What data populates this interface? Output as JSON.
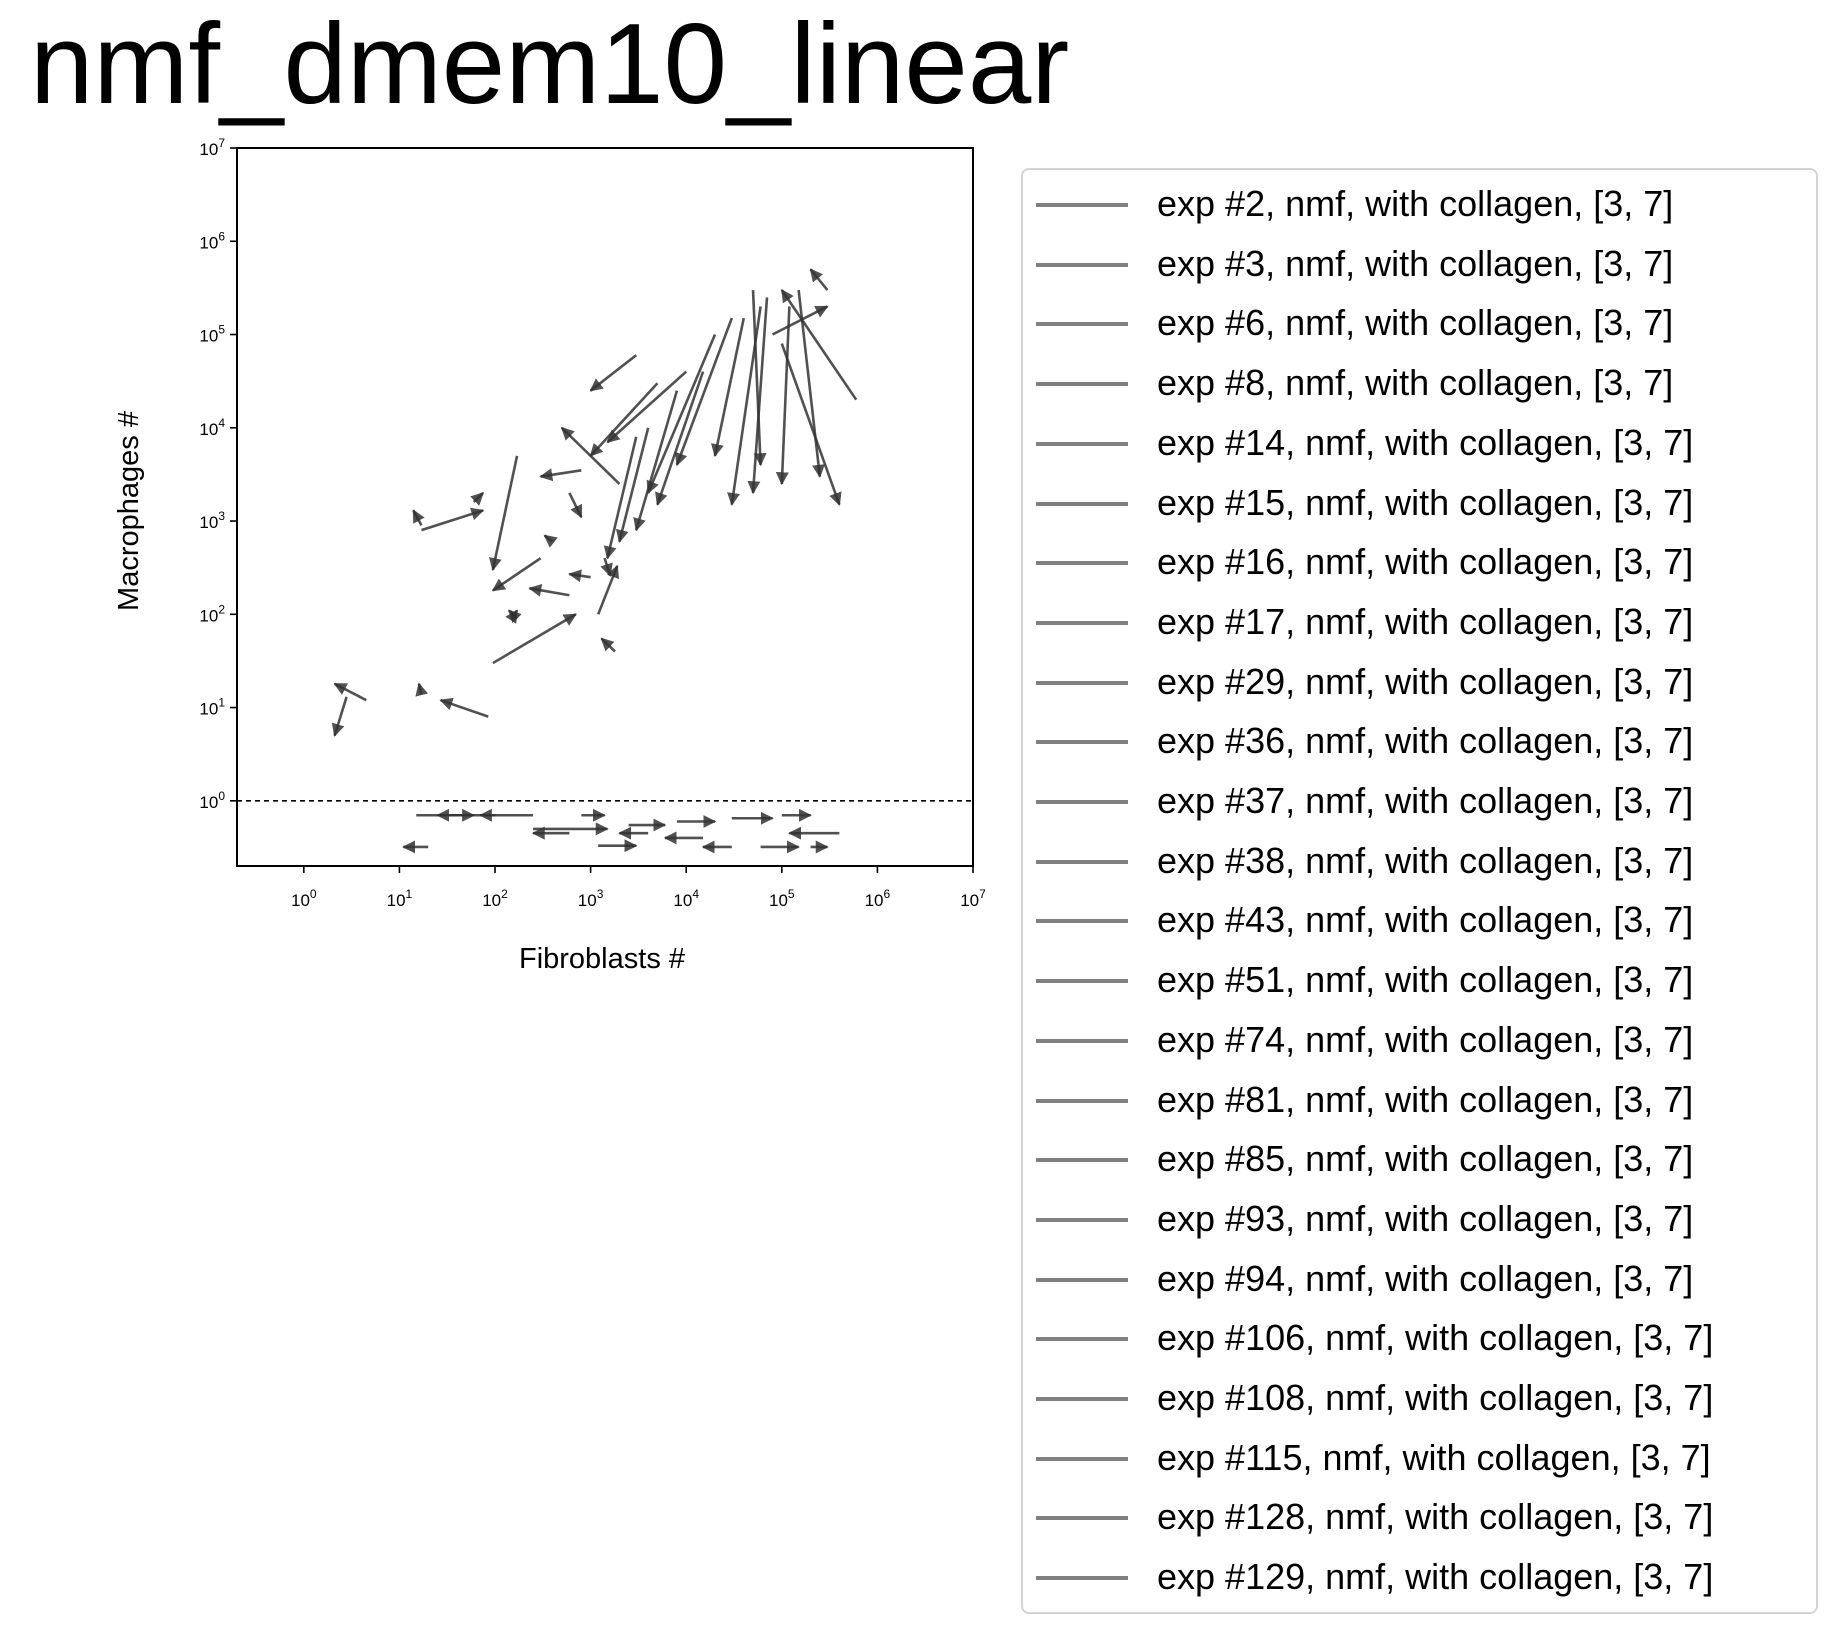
{
  "chart_data": {
    "type": "scatter",
    "title": "nmf_dmem10_linear",
    "xlabel": "Fibroblasts #",
    "ylabel": "Macrophages #",
    "xscale": "log",
    "yscale": "log",
    "xlim": [
      0.2,
      10000000
    ],
    "ylim": [
      0.2,
      10000000
    ],
    "x_ticks": [
      "10^0",
      "10^1",
      "10^2",
      "10^3",
      "10^4",
      "10^5",
      "10^6",
      "10^7"
    ],
    "y_ticks": [
      "10^0",
      "10^1",
      "10^2",
      "10^3",
      "10^4",
      "10^5",
      "10^6",
      "10^7"
    ],
    "threshold_line": {
      "y": 1,
      "style": "dashed"
    },
    "mark_style": "arrows (quiver), dark gray, semi-transparent",
    "arrows": [
      {
        "x0": 4.5,
        "y0": 12,
        "x1": 2.1,
        "y1": 18
      },
      {
        "x0": 2.8,
        "y0": 13,
        "x1": 2.1,
        "y1": 5
      },
      {
        "x0": 85,
        "y0": 8,
        "x1": 27,
        "y1": 12
      },
      {
        "x0": 17,
        "y0": 14,
        "x1": 16,
        "y1": 18
      },
      {
        "x0": 17,
        "y0": 800,
        "x1": 75,
        "y1": 1300
      },
      {
        "x0": 17,
        "y0": 900,
        "x1": 14,
        "y1": 1300
      },
      {
        "x0": 60,
        "y0": 1600,
        "x1": 75,
        "y1": 2000
      },
      {
        "x0": 170,
        "y0": 5000,
        "x1": 95,
        "y1": 300
      },
      {
        "x0": 95,
        "y0": 30,
        "x1": 700,
        "y1": 100
      },
      {
        "x0": 300,
        "y0": 400,
        "x1": 95,
        "y1": 180
      },
      {
        "x0": 150,
        "y0": 90,
        "x1": 170,
        "y1": 110
      },
      {
        "x0": 170,
        "y0": 90,
        "x1": 140,
        "y1": 110
      },
      {
        "x0": 600,
        "y0": 160,
        "x1": 230,
        "y1": 190
      },
      {
        "x0": 400,
        "y0": 600,
        "x1": 330,
        "y1": 700
      },
      {
        "x0": 1800,
        "y0": 40,
        "x1": 1300,
        "y1": 55
      },
      {
        "x0": 1200,
        "y0": 100,
        "x1": 1900,
        "y1": 330
      },
      {
        "x0": 1400,
        "y0": 400,
        "x1": 1600,
        "y1": 260
      },
      {
        "x0": 1000,
        "y0": 250,
        "x1": 600,
        "y1": 270
      },
      {
        "x0": 600,
        "y0": 2000,
        "x1": 800,
        "y1": 1100
      },
      {
        "x0": 800,
        "y0": 3500,
        "x1": 300,
        "y1": 3000
      },
      {
        "x0": 2000,
        "y0": 2500,
        "x1": 500,
        "y1": 10000
      },
      {
        "x0": 5000,
        "y0": 30000,
        "x1": 1000,
        "y1": 5000
      },
      {
        "x0": 3000,
        "y0": 60000,
        "x1": 1000,
        "y1": 25000
      },
      {
        "x0": 10000,
        "y0": 40000,
        "x1": 1500,
        "y1": 7000
      },
      {
        "x0": 20000,
        "y0": 100000,
        "x1": 4000,
        "y1": 2000
      },
      {
        "x0": 30000,
        "y0": 150000,
        "x1": 8000,
        "y1": 4000
      },
      {
        "x0": 60000,
        "y0": 200000,
        "x1": 30000,
        "y1": 1500
      },
      {
        "x0": 100000,
        "y0": 80000,
        "x1": 400000,
        "y1": 1500
      },
      {
        "x0": 150000,
        "y0": 300000,
        "x1": 250000,
        "y1": 3000
      },
      {
        "x0": 300000,
        "y0": 300000,
        "x1": 200000,
        "y1": 500000
      },
      {
        "x0": 600000,
        "y0": 20000,
        "x1": 100000,
        "y1": 300000
      },
      {
        "x0": 80000,
        "y0": 100000,
        "x1": 300000,
        "y1": 200000
      },
      {
        "x0": 50000,
        "y0": 300000,
        "x1": 60000,
        "y1": 4000
      },
      {
        "x0": 40000,
        "y0": 150000,
        "x1": 20000,
        "y1": 5000
      },
      {
        "x0": 70000,
        "y0": 250000,
        "x1": 50000,
        "y1": 2000
      },
      {
        "x0": 120000,
        "y0": 200000,
        "x1": 100000,
        "y1": 2500
      },
      {
        "x0": 15000,
        "y0": 40000,
        "x1": 5000,
        "y1": 1500
      },
      {
        "x0": 8000,
        "y0": 25000,
        "x1": 3000,
        "y1": 800
      },
      {
        "x0": 4000,
        "y0": 10000,
        "x1": 2000,
        "y1": 600
      },
      {
        "x0": 3000,
        "y0": 8000,
        "x1": 1500,
        "y1": 400
      },
      {
        "x0": 15,
        "y0": 0.7,
        "x1": 60,
        "y1": 0.7
      },
      {
        "x0": 100,
        "y0": 0.7,
        "x1": 25,
        "y1": 0.7
      },
      {
        "x0": 250,
        "y0": 0.7,
        "x1": 70,
        "y1": 0.7
      },
      {
        "x0": 20,
        "y0": 0.32,
        "x1": 11,
        "y1": 0.32
      },
      {
        "x0": 250,
        "y0": 0.5,
        "x1": 1500,
        "y1": 0.5
      },
      {
        "x0": 600,
        "y0": 0.45,
        "x1": 250,
        "y1": 0.45
      },
      {
        "x0": 800,
        "y0": 0.7,
        "x1": 1400,
        "y1": 0.7
      },
      {
        "x0": 1200,
        "y0": 0.33,
        "x1": 3000,
        "y1": 0.33
      },
      {
        "x0": 2500,
        "y0": 0.55,
        "x1": 6000,
        "y1": 0.55
      },
      {
        "x0": 8000,
        "y0": 0.6,
        "x1": 20000,
        "y1": 0.6
      },
      {
        "x0": 15000,
        "y0": 0.4,
        "x1": 6000,
        "y1": 0.4
      },
      {
        "x0": 30000,
        "y0": 0.65,
        "x1": 80000,
        "y1": 0.65
      },
      {
        "x0": 60000,
        "y0": 0.32,
        "x1": 150000,
        "y1": 0.32
      },
      {
        "x0": 100000,
        "y0": 0.7,
        "x1": 200000,
        "y1": 0.7
      },
      {
        "x0": 400000,
        "y0": 0.45,
        "x1": 120000,
        "y1": 0.45
      },
      {
        "x0": 200000,
        "y0": 0.32,
        "x1": 300000,
        "y1": 0.32
      },
      {
        "x0": 4000,
        "y0": 0.45,
        "x1": 2000,
        "y1": 0.45
      },
      {
        "x0": 30000,
        "y0": 0.32,
        "x1": 15000,
        "y1": 0.32
      }
    ],
    "legend": {
      "position": "outside right",
      "entries": [
        "exp #2, nmf, with collagen, [3, 7]",
        "exp #3, nmf, with collagen, [3, 7]",
        "exp #6, nmf, with collagen, [3, 7]",
        "exp #8, nmf, with collagen, [3, 7]",
        "exp #14, nmf, with collagen, [3, 7]",
        "exp #15, nmf, with collagen, [3, 7]",
        "exp #16, nmf, with collagen, [3, 7]",
        "exp #17, nmf, with collagen, [3, 7]",
        "exp #29, nmf, with collagen, [3, 7]",
        "exp #36, nmf, with collagen, [3, 7]",
        "exp #37, nmf, with collagen, [3, 7]",
        "exp #38, nmf, with collagen, [3, 7]",
        "exp #43, nmf, with collagen, [3, 7]",
        "exp #51, nmf, with collagen, [3, 7]",
        "exp #74, nmf, with collagen, [3, 7]",
        "exp #81, nmf, with collagen, [3, 7]",
        "exp #85, nmf, with collagen, [3, 7]",
        "exp #93, nmf, with collagen, [3, 7]",
        "exp #94, nmf, with collagen, [3, 7]",
        "exp #106, nmf, with collagen, [3, 7]",
        "exp #108, nmf, with collagen, [3, 7]",
        "exp #115, nmf, with collagen, [3, 7]",
        "exp #128, nmf, with collagen, [3, 7]",
        "exp #129, nmf, with collagen, [3, 7]"
      ],
      "swatch_color": "#808080"
    },
    "arrow_color": "#333333"
  }
}
